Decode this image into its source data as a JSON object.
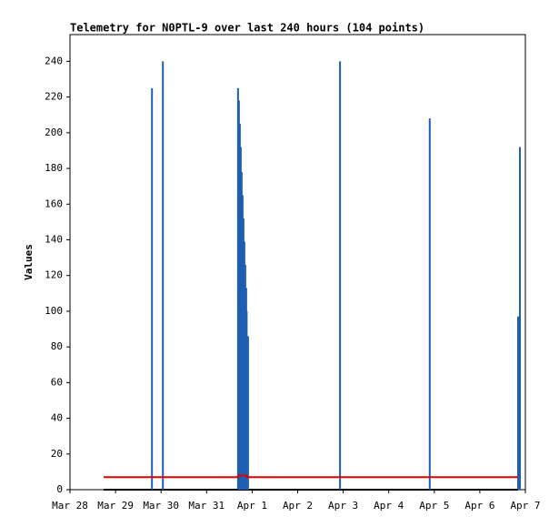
{
  "chart_data": {
    "type": "line",
    "title": "Telemetry for N0PTL-9 over last 240 hours (104 points)",
    "y_label": "Values",
    "xlim": [
      0,
      10
    ],
    "xticks": [
      {
        "value": 0,
        "label": "Mar 28"
      },
      {
        "value": 1,
        "label": "Mar 29"
      },
      {
        "value": 2,
        "label": "Mar 30"
      },
      {
        "value": 3,
        "label": "Mar 31"
      },
      {
        "value": 4,
        "label": "Apr 1"
      },
      {
        "value": 5,
        "label": "Apr 2"
      },
      {
        "value": 6,
        "label": "Apr 3"
      },
      {
        "value": 7,
        "label": "Apr 4"
      },
      {
        "value": 8,
        "label": "Apr 5"
      },
      {
        "value": 9,
        "label": "Apr 6"
      },
      {
        "value": 10,
        "label": "Apr 7"
      }
    ],
    "ylim": [
      0,
      255
    ],
    "yticks": [
      0,
      20,
      40,
      60,
      80,
      100,
      120,
      140,
      160,
      180,
      200,
      220,
      240
    ],
    "series": [
      {
        "color": "#000000",
        "style": "line",
        "x": [
          0.74,
          9.84
        ],
        "values": [
          0,
          0
        ]
      },
      {
        "color": "#1f5fb0",
        "style": "impulse",
        "x": [
          1.8,
          2.04,
          3.69,
          3.71,
          3.73,
          3.75,
          3.77,
          3.79,
          3.81,
          3.83,
          3.85,
          3.87,
          3.88,
          3.91,
          5.93,
          7.9,
          9.84,
          9.88
        ],
        "values": [
          225,
          240,
          225,
          218,
          205,
          192,
          178,
          165,
          152,
          139,
          126,
          113,
          100,
          86,
          240,
          208,
          97,
          192
        ]
      },
      {
        "color": "#e00000",
        "style": "line",
        "x": [
          0.74,
          3.69,
          3.7,
          3.88,
          3.89,
          9.84
        ],
        "values": [
          7,
          7,
          8,
          8,
          7,
          7
        ]
      }
    ]
  }
}
